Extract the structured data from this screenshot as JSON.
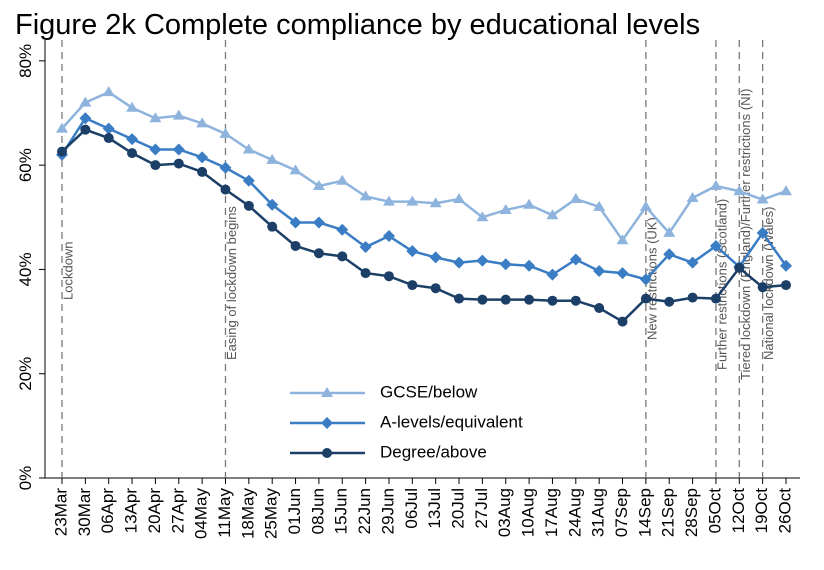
{
  "chart_data": {
    "type": "line",
    "title": "Figure 2k Complete compliance by educational levels",
    "categories": [
      "23Mar",
      "30Mar",
      "06Apr",
      "13Apr",
      "20Apr",
      "27Apr",
      "04May",
      "11May",
      "18May",
      "25May",
      "01Jun",
      "08Jun",
      "15Jun",
      "22Jun",
      "29Jun",
      "06Jul",
      "13Jul",
      "20Jul",
      "27Jul",
      "03Aug",
      "10Aug",
      "17Aug",
      "24Aug",
      "31Aug",
      "07Sep",
      "14Sep",
      "21Sep",
      "28Sep",
      "05Oct",
      "12Oct",
      "19Oct",
      "26Oct"
    ],
    "series": [
      {
        "name": "GCSE/below",
        "color": "#8eb3dd",
        "marker": "triangle",
        "values": [
          67,
          72,
          74,
          71,
          69,
          69.5,
          68,
          66,
          63,
          61,
          59,
          56,
          57,
          54,
          53,
          53,
          52.7,
          53.5,
          50,
          51.4,
          52.4,
          50.4,
          53.5,
          52,
          45.6,
          52,
          47,
          53.7,
          56,
          55,
          53.4,
          55
        ]
      },
      {
        "name": "A-levels/equivalent",
        "color": "#3a7dc4",
        "marker": "diamond",
        "values": [
          62,
          69,
          67,
          65,
          63,
          63,
          61.5,
          59.5,
          57,
          52.4,
          49,
          49,
          47.6,
          44.3,
          46.4,
          43.5,
          42.3,
          41.3,
          41.7,
          41,
          40.7,
          39,
          41.9,
          39.7,
          39.3,
          38.1,
          42.9,
          41.3,
          44.5,
          40.5,
          47,
          40.7
        ]
      },
      {
        "name": "Degree/above",
        "color": "#1b3f66",
        "marker": "circle",
        "values": [
          62.6,
          66.8,
          65.2,
          62.3,
          60,
          60.3,
          58.7,
          55.3,
          52.2,
          48.2,
          44.5,
          43.1,
          42.5,
          39.3,
          38.7,
          37,
          36.4,
          34.4,
          34.2,
          34.2,
          34.2,
          34,
          34,
          32.6,
          30,
          34.4,
          33.8,
          34.6,
          34.4,
          40.3,
          36.6,
          37
        ]
      }
    ],
    "ylim": [
      0,
      84
    ],
    "yticks": [
      {
        "value": 0,
        "label": "0%"
      },
      {
        "value": 20,
        "label": "20%"
      },
      {
        "value": 40,
        "label": "40%"
      },
      {
        "value": 60,
        "label": "60%"
      },
      {
        "value": 80,
        "label": "80%"
      }
    ],
    "annotations": [
      {
        "x": "23Mar",
        "text": "Lockdown"
      },
      {
        "x": "11May",
        "text": "Easing of lockdown begins"
      },
      {
        "x": "14Sep",
        "text": "New restrictions (UK)"
      },
      {
        "x": "05Oct",
        "text": "Further restrictions (Scotland)"
      },
      {
        "x": "12Oct",
        "text": "Tiered lockdown (England)/Further restrictions (NI)"
      },
      {
        "x": "19Oct",
        "text": "National lockdown (Wales)"
      }
    ],
    "legend": "lower-center",
    "grid": false
  }
}
